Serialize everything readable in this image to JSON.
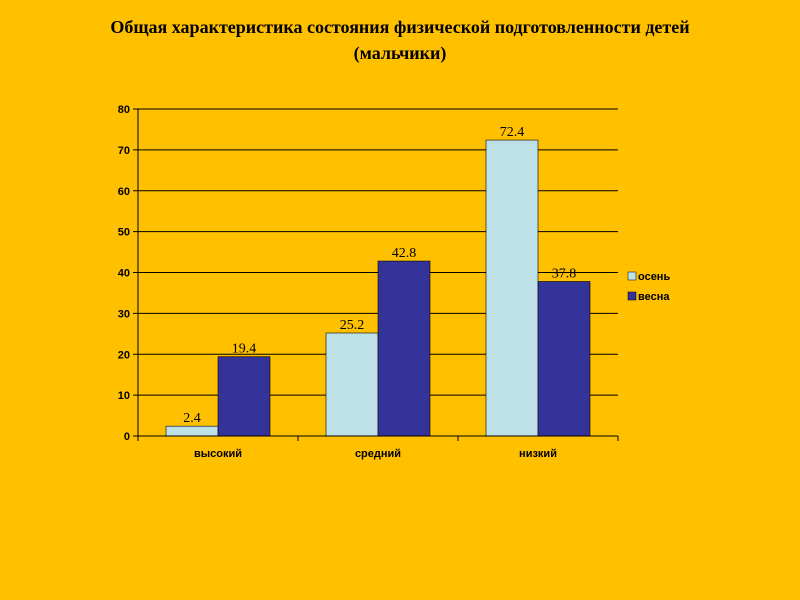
{
  "title": {
    "line1": "Общая характеристика состояния физической подготовленности детей",
    "line2": "(мальчики)"
  },
  "colors": {
    "background": "#FFC000",
    "grid": "#000000",
    "series_0": "#BEE0E8",
    "series_1": "#333399"
  },
  "chart_data": {
    "type": "bar",
    "title": "Общая характеристика состояния физической подготовленности детей (мальчики)",
    "categories": [
      "высокий",
      "средний",
      "низкий"
    ],
    "series": [
      {
        "name": "осень",
        "values": [
          2.4,
          25.2,
          72.4
        ]
      },
      {
        "name": "весна",
        "values": [
          19.4,
          42.8,
          37.8
        ]
      }
    ],
    "data_labels": [
      [
        "2.4",
        "25.2",
        "72.4"
      ],
      [
        "19.4",
        "42.8",
        "37.8"
      ]
    ],
    "yticks": [
      "0",
      "10",
      "20",
      "30",
      "40",
      "50",
      "60",
      "70",
      "80"
    ],
    "ylim": [
      0,
      80
    ],
    "xlabel": "",
    "ylabel": "",
    "grid": true,
    "legend": "right"
  }
}
